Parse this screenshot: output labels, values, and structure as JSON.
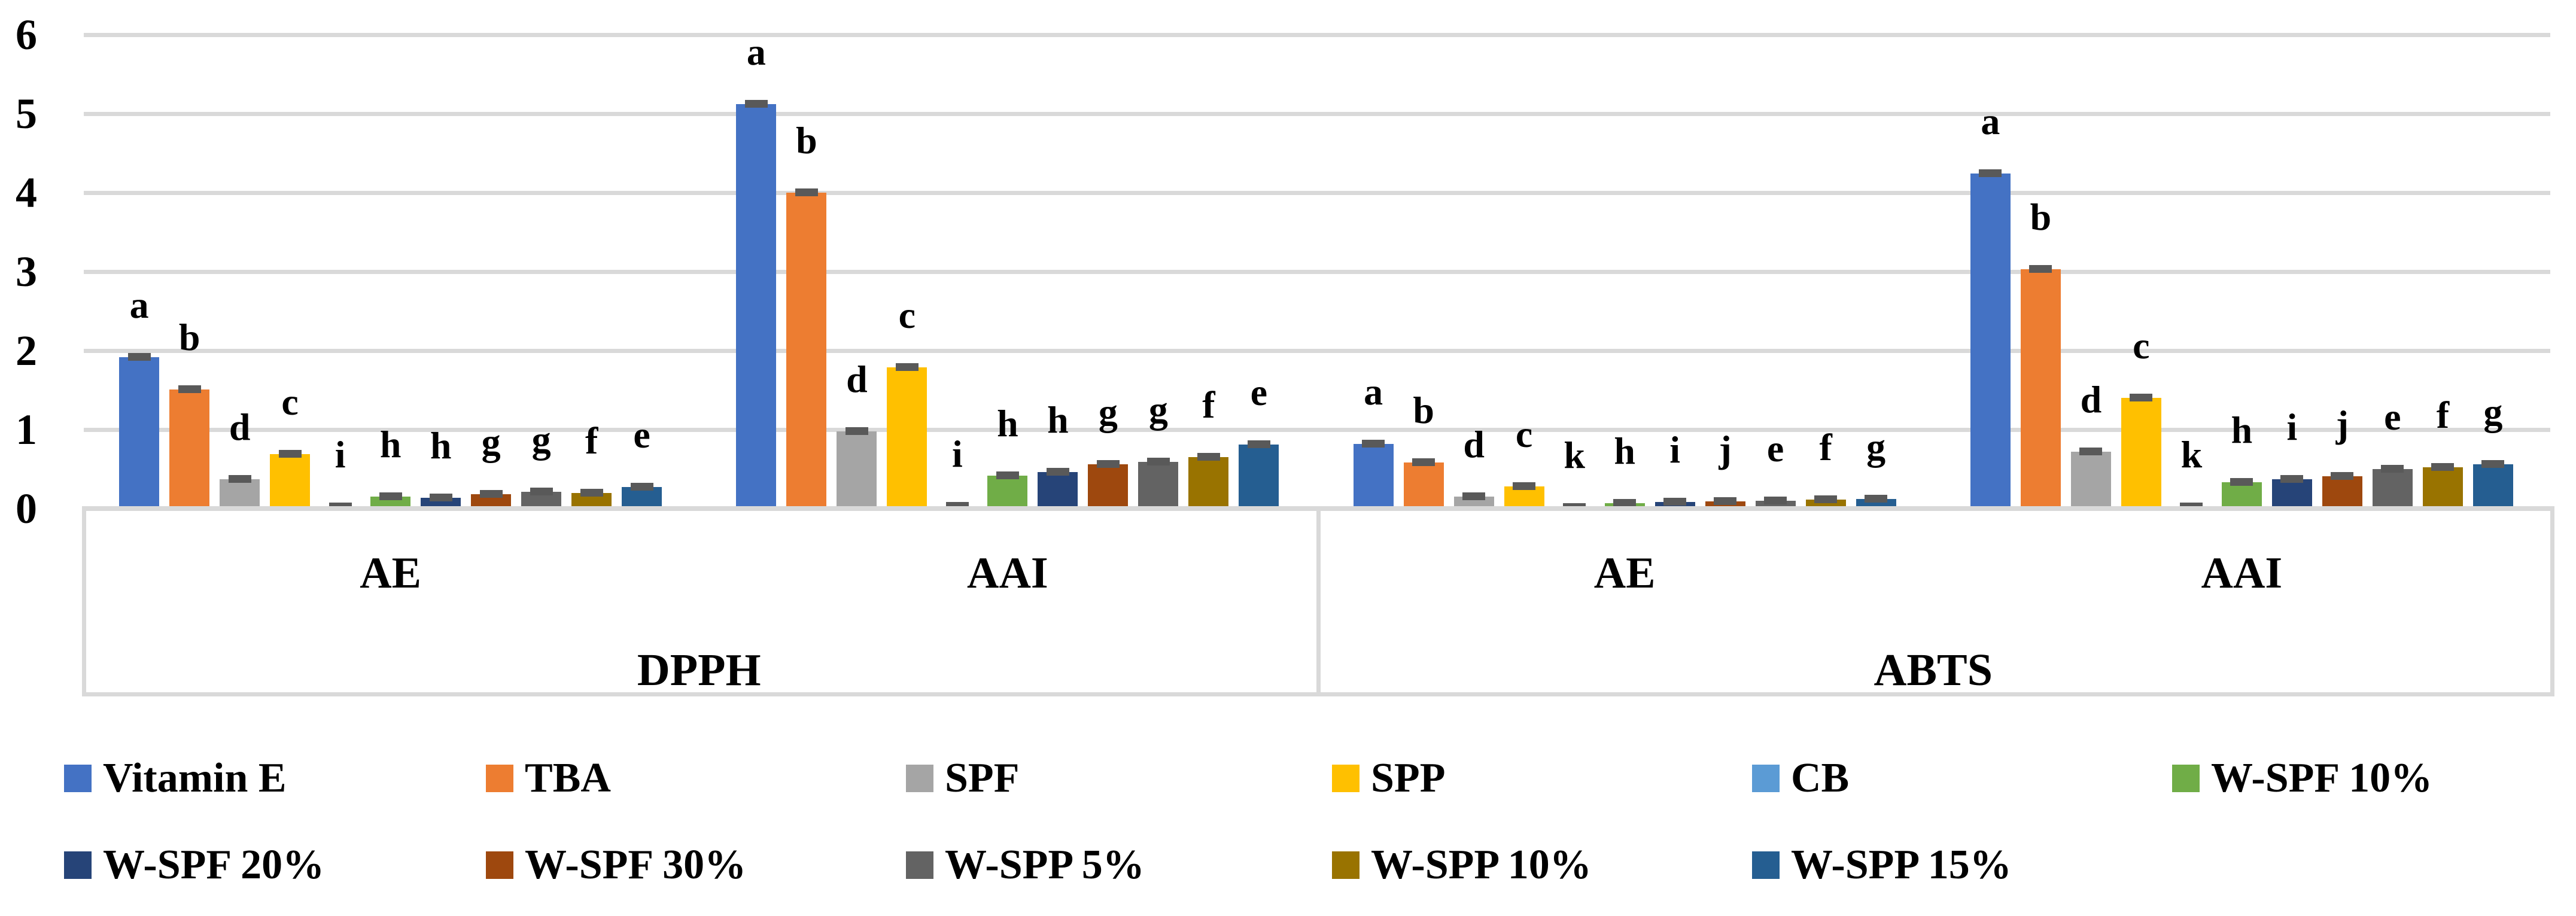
{
  "chart_data": {
    "type": "bar",
    "title": "",
    "xlabel": "",
    "ylabel": "",
    "ylim": [
      0,
      6
    ],
    "yticks": [
      "0",
      "1",
      "2",
      "3",
      "4",
      "5",
      "6"
    ],
    "grid": "horizontal",
    "legend_position": "bottom",
    "axis_color": "#D9D9D9",
    "error_cap_color": "#595959",
    "categories": [
      "DPPH AE",
      "DPPH AAI",
      "ABTS AE",
      "ABTS AAI"
    ],
    "category_axis": {
      "section_labels": [
        "AE",
        "AAI",
        "AE",
        "AAI"
      ],
      "assay_labels": [
        "DPPH",
        "ABTS"
      ]
    },
    "series": [
      {
        "name": "Vitamin E",
        "color": "#4472C4",
        "values": [
          1.92,
          5.12,
          0.82,
          4.24
        ],
        "letters": [
          "a",
          "a",
          "a",
          "a"
        ]
      },
      {
        "name": "TBA",
        "color": "#ED7D31",
        "values": [
          1.51,
          4.0,
          0.58,
          3.03
        ],
        "letters": [
          "b",
          "b",
          "b",
          "b"
        ]
      },
      {
        "name": "SPF",
        "color": "#A5A5A5",
        "values": [
          0.37,
          0.98,
          0.15,
          0.72
        ],
        "letters": [
          "d",
          "d",
          "d",
          "d"
        ]
      },
      {
        "name": "SPP",
        "color": "#FFC000",
        "values": [
          0.69,
          1.79,
          0.28,
          1.4
        ],
        "letters": [
          "c",
          "c",
          "c",
          "c"
        ]
      },
      {
        "name": "CB",
        "color": "#5B9BD5",
        "values": [
          0.02,
          0.03,
          0.01,
          0.02
        ],
        "letters": [
          "i",
          "i",
          "k",
          "k"
        ]
      },
      {
        "name": "W-SPF 10%",
        "color": "#70AD47",
        "values": [
          0.15,
          0.42,
          0.07,
          0.33
        ],
        "letters": [
          "h",
          "h",
          "h",
          "h"
        ]
      },
      {
        "name": "W-SPF 20%",
        "color": "#264478",
        "values": [
          0.14,
          0.46,
          0.08,
          0.37
        ],
        "letters": [
          "h",
          "h",
          "i",
          "i"
        ]
      },
      {
        "name": "W-SPF 30%",
        "color": "#9E480E",
        "values": [
          0.18,
          0.56,
          0.09,
          0.41
        ],
        "letters": [
          "g",
          "g",
          "j",
          "j"
        ]
      },
      {
        "name": "W-SPP 5%",
        "color": "#636363",
        "values": [
          0.21,
          0.59,
          0.1,
          0.5
        ],
        "letters": [
          "g",
          "g",
          "e",
          "e"
        ]
      },
      {
        "name": "W-SPP 10%",
        "color": "#997300",
        "values": [
          0.2,
          0.65,
          0.11,
          0.52
        ],
        "letters": [
          "f",
          "f",
          "f",
          "f"
        ]
      },
      {
        "name": "W-SPP 15%",
        "color": "#255E91",
        "values": [
          0.27,
          0.81,
          0.12,
          0.56
        ],
        "letters": [
          "e",
          "e",
          "g",
          "g"
        ]
      }
    ]
  },
  "legend": {
    "rows": [
      [
        "Vitamin E",
        "TBA",
        "SPF",
        "SPP",
        "CB",
        "W-SPF 10%"
      ],
      [
        "W-SPF 20%",
        "W-SPF 30%",
        "W-SPP 5%",
        "W-SPP 10%",
        "W-SPP 15%"
      ]
    ]
  }
}
